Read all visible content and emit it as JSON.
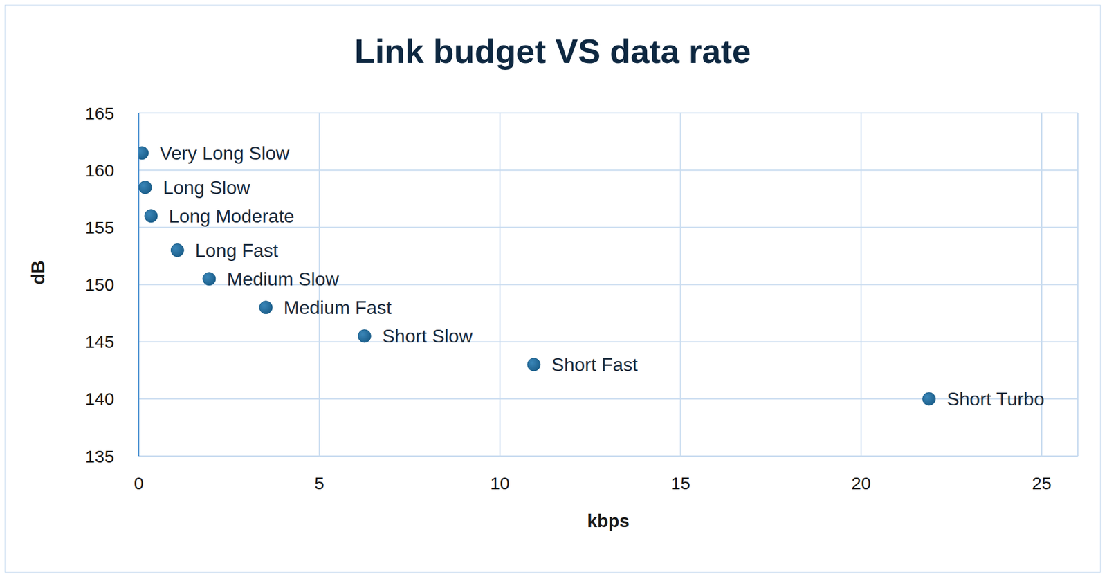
{
  "chart_data": {
    "type": "scatter",
    "title": "Link budget VS data rate",
    "x_label": "kbps",
    "y_label": "dB",
    "x": [
      0.09,
      0.18,
      0.34,
      1.07,
      1.95,
      3.52,
      6.25,
      10.94,
      21.88
    ],
    "values": [
      161.5,
      158.5,
      156,
      153,
      150.5,
      148,
      145.5,
      143,
      140
    ],
    "labels": [
      "Very Long Slow",
      "Long Slow",
      "Long Moderate",
      "Long Fast",
      "Medium Slow",
      "Medium Fast",
      "Short Slow",
      "Short Fast",
      "Short Turbo"
    ],
    "color": "#1b5e8a",
    "xlim": [
      0,
      26
    ],
    "xticks": [
      0,
      5,
      10,
      15,
      20,
      25
    ],
    "ylim": [
      135,
      165
    ],
    "yticks": [
      135,
      140,
      145,
      150,
      155,
      160,
      165
    ],
    "grid": true
  }
}
